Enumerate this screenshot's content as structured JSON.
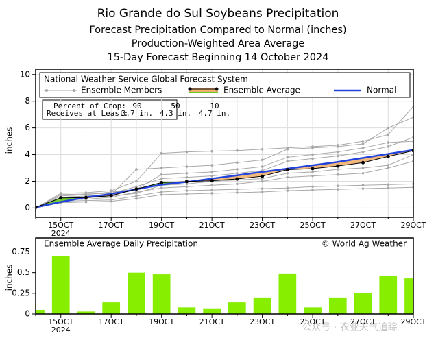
{
  "title": "Rio Grande do Sul Soybeans Precipitation",
  "subtitles": [
    "Forecast Precipitation Compared to Normal (inches)",
    "Production-Weighted Area Average",
    "15-Day Forecast Beginning 14 October 2024"
  ],
  "watermark": "公众号 · 农业天气追踪",
  "chart_data": [
    {
      "type": "line",
      "title": "National Weather Service Global Forecast System",
      "ylabel": "inches",
      "categories": [
        null,
        "15OCT",
        null,
        "17OCT",
        null,
        "19OCT",
        null,
        "21OCT",
        null,
        "23OCT",
        null,
        "25OCT",
        null,
        "27OCT",
        null,
        "29OCT"
      ],
      "year_label": "2024",
      "ylim": [
        -0.7,
        10.4
      ],
      "yticks": [
        0,
        2,
        4,
        6,
        8,
        10
      ],
      "series": [
        {
          "name": "Ensemble Members",
          "color": "#a8a8a8",
          "members": [
            [
              0,
              1.1,
              1.15,
              1.3,
              2.0,
              4.1,
              4.2,
              4.25,
              4.3,
              4.4,
              4.5,
              4.6,
              4.7,
              5.0,
              5.5,
              7.6
            ],
            [
              0,
              0.5,
              0.55,
              0.6,
              0.9,
              1.2,
              1.3,
              1.35,
              1.4,
              1.45,
              1.5,
              1.6,
              1.65,
              1.7,
              1.75,
              1.8
            ],
            [
              0,
              0.8,
              0.9,
              1.0,
              2.9,
              3.0,
              3.1,
              3.2,
              3.4,
              3.6,
              4.4,
              4.5,
              4.6,
              4.8,
              6.0,
              6.8
            ],
            [
              0,
              0.4,
              0.45,
              0.5,
              0.7,
              1.0,
              1.05,
              1.1,
              1.15,
              1.2,
              1.3,
              1.35,
              1.4,
              1.45,
              1.5,
              1.55
            ],
            [
              0,
              1.0,
              1.05,
              1.1,
              1.6,
              2.2,
              2.3,
              2.4,
              2.6,
              2.8,
              3.5,
              3.7,
              3.9,
              4.2,
              4.6,
              5.3
            ],
            [
              0,
              0.6,
              0.65,
              0.8,
              1.2,
              1.5,
              1.6,
              1.7,
              1.8,
              2.0,
              2.3,
              2.4,
              2.5,
              2.6,
              3.0,
              3.5
            ],
            [
              0,
              0.9,
              1.0,
              1.2,
              1.4,
              2.5,
              2.6,
              2.7,
              2.9,
              3.1,
              3.8,
              4.0,
              4.2,
              4.5,
              4.9,
              5.0
            ],
            [
              0,
              0.7,
              0.75,
              0.9,
              1.1,
              1.7,
              1.8,
              2.0,
              2.1,
              2.2,
              2.6,
              2.7,
              2.9,
              3.0,
              3.2,
              4.0
            ]
          ]
        },
        {
          "name": "Ensemble Average",
          "color": "#000000",
          "below_color": "#f0b070",
          "above_color": "#66cc22",
          "values": [
            0.05,
            0.75,
            0.78,
            0.92,
            1.42,
            1.9,
            1.98,
            2.04,
            2.18,
            2.38,
            2.87,
            2.95,
            3.15,
            3.4,
            3.86,
            4.29
          ]
        },
        {
          "name": "Normal",
          "color": "#2244dd",
          "values": [
            0.05,
            0.45,
            0.8,
            1.05,
            1.4,
            1.75,
            1.95,
            2.2,
            2.45,
            2.7,
            2.95,
            3.2,
            3.45,
            3.75,
            4.05,
            4.35
          ]
        }
      ],
      "crop_table": {
        "header": "Percent of Crop:",
        "percents": [
          90,
          50,
          10
        ],
        "row_label": "Receives at Least:",
        "amount_labels": [
          "3.7 in.",
          "4.3 in.",
          "4.7 in."
        ]
      }
    },
    {
      "type": "bar",
      "title": "Ensemble Average Daily Precipitation",
      "annotation": "© World Ag Weather",
      "ylabel": "inches",
      "categories": [
        null,
        "15OCT",
        null,
        "17OCT",
        null,
        "19OCT",
        null,
        "21OCT",
        null,
        "23OCT",
        null,
        "25OCT",
        null,
        "27OCT",
        null,
        "29OCT"
      ],
      "year_label": "2024",
      "color": "#88ee00",
      "values": [
        0.05,
        0.7,
        0.03,
        0.14,
        0.5,
        0.48,
        0.08,
        0.06,
        0.14,
        0.2,
        0.49,
        0.08,
        0.2,
        0.25,
        0.46,
        0.43
      ],
      "ylim": [
        0,
        0.92
      ],
      "yticks": [
        0,
        0.25,
        0.5,
        0.75
      ]
    }
  ]
}
